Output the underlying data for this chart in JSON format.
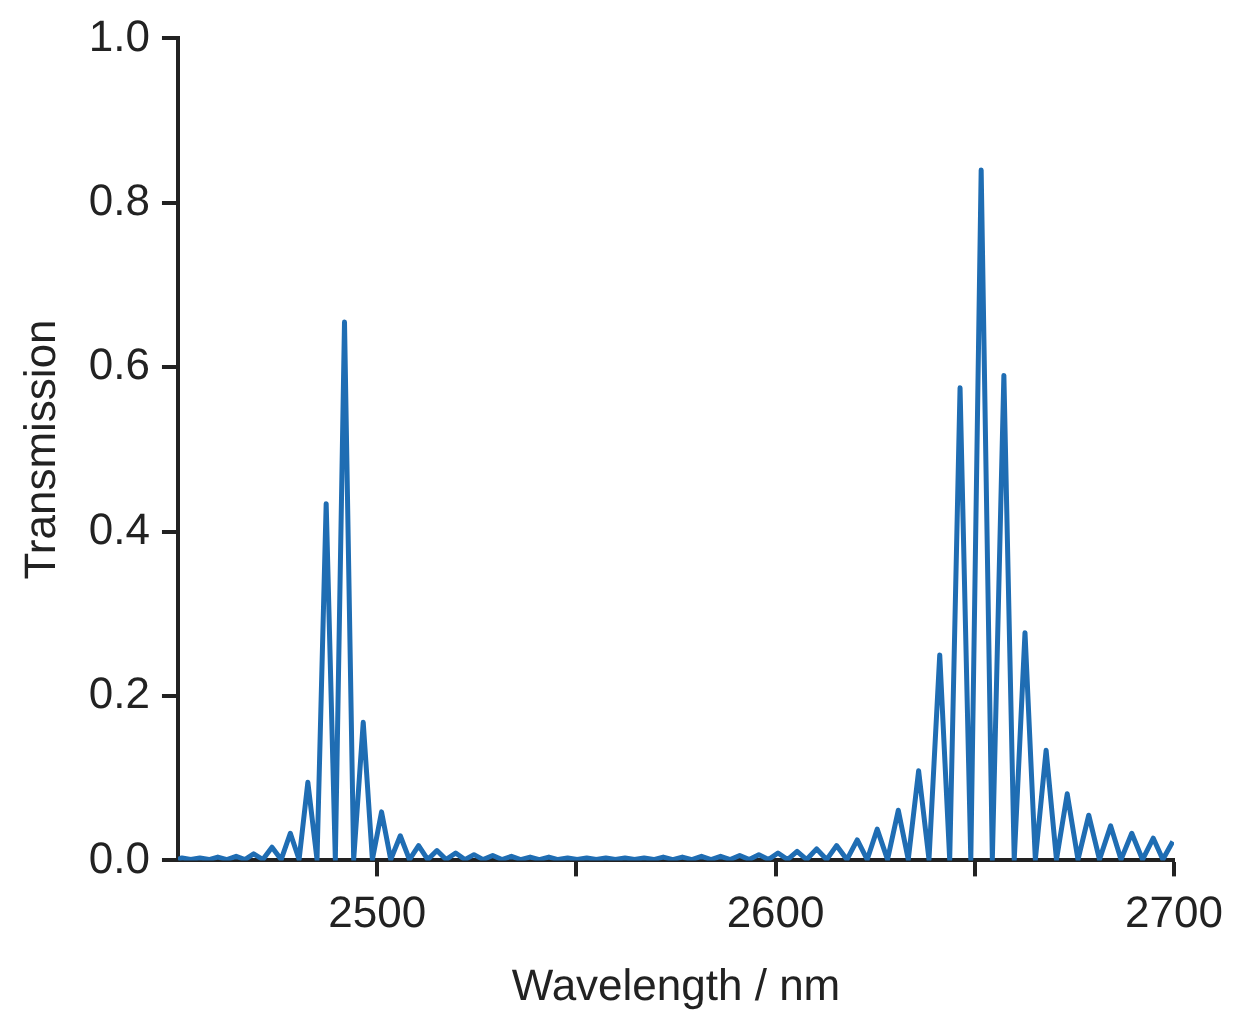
{
  "chart_data": {
    "type": "line",
    "xlabel": "Wavelength / nm",
    "ylabel": "Transmission",
    "xlim": [
      2450,
      2700
    ],
    "xticks": [
      2500,
      {
        "value": 2550,
        "label": null
      },
      2600,
      {
        "value": 2650,
        "label": null
      },
      2700
    ],
    "ylim": [
      0,
      1
    ],
    "yticks": [
      {
        "value": 0,
        "label": "0.0"
      },
      {
        "value": 0.2,
        "label": "0.2"
      },
      {
        "value": 0.4,
        "label": "0.4"
      },
      {
        "value": 0.6,
        "label": "0.6"
      },
      {
        "value": 0.8,
        "label": "0.8"
      },
      {
        "value": 1,
        "label": "1.0"
      }
    ],
    "grid": false,
    "legend": false,
    "marker": "none",
    "line_style": "solid",
    "series": [
      {
        "color": "#1f6db3",
        "x": [
          2450,
          2451.0,
          2453.2,
          2455.5,
          2457.8,
          2460.0,
          2462.3,
          2464.6,
          2466.8,
          2469.0,
          2471.3,
          2473.6,
          2475.9,
          2478.2,
          2480.4,
          2482.6,
          2484.9,
          2487.2,
          2489.5,
          2491.8,
          2494.1,
          2496.5,
          2498.8,
          2501.1,
          2503.4,
          2505.8,
          2508.1,
          2510.4,
          2512.7,
          2515.0,
          2517.3,
          2519.7,
          2522.0,
          2524.3,
          2526.6,
          2529.0,
          2531.3,
          2533.7,
          2536.0,
          2538.4,
          2540.7,
          2543.1,
          2545.4,
          2547.8,
          2550.2,
          2552.6,
          2555.0,
          2557.4,
          2559.8,
          2562.2,
          2564.6,
          2567.0,
          2569.4,
          2571.8,
          2574.2,
          2576.6,
          2579.0,
          2581.4,
          2583.8,
          2586.2,
          2588.6,
          2591.0,
          2593.4,
          2595.8,
          2598.2,
          2600.6,
          2603.0,
          2605.4,
          2607.8,
          2610.3,
          2612.8,
          2615.3,
          2617.9,
          2620.5,
          2623.0,
          2625.5,
          2628.1,
          2630.8,
          2633.3,
          2635.9,
          2638.5,
          2641.2,
          2643.7,
          2646.3,
          2649.0,
          2651.6,
          2654.4,
          2657.3,
          2659.9,
          2662.6,
          2665.2,
          2667.9,
          2670.5,
          2673.2,
          2675.9,
          2678.6,
          2681.3,
          2684.1,
          2686.7,
          2689.4,
          2692.1,
          2694.8,
          2697.2,
          2699.7
        ],
        "values": [
          0.001,
          0.003,
          0.001,
          0.003,
          0.001,
          0.004,
          0.001,
          0.005,
          0.001,
          0.008,
          0.001,
          0.016,
          0.001,
          0.033,
          0.001,
          0.095,
          0.001,
          0.434,
          0.001,
          0.655,
          0.001,
          0.168,
          0.001,
          0.059,
          0.001,
          0.03,
          0.001,
          0.018,
          0.001,
          0.012,
          0.001,
          0.009,
          0.001,
          0.007,
          0.001,
          0.006,
          0.001,
          0.005,
          0.001,
          0.004,
          0.001,
          0.004,
          0.001,
          0.003,
          0.001,
          0.003,
          0.001,
          0.003,
          0.001,
          0.003,
          0.001,
          0.003,
          0.001,
          0.004,
          0.001,
          0.004,
          0.001,
          0.005,
          0.001,
          0.005,
          0.001,
          0.006,
          0.001,
          0.007,
          0.001,
          0.009,
          0.001,
          0.011,
          0.001,
          0.014,
          0.001,
          0.018,
          0.001,
          0.025,
          0.001,
          0.038,
          0.001,
          0.061,
          0.001,
          0.109,
          0.001,
          0.25,
          0.001,
          0.575,
          0.001,
          0.84,
          0.001,
          0.59,
          0.001,
          0.277,
          0.001,
          0.134,
          0.001,
          0.081,
          0.001,
          0.055,
          0.001,
          0.042,
          0.001,
          0.033,
          0.001,
          0.027,
          0.001,
          0.023
        ]
      }
    ]
  }
}
